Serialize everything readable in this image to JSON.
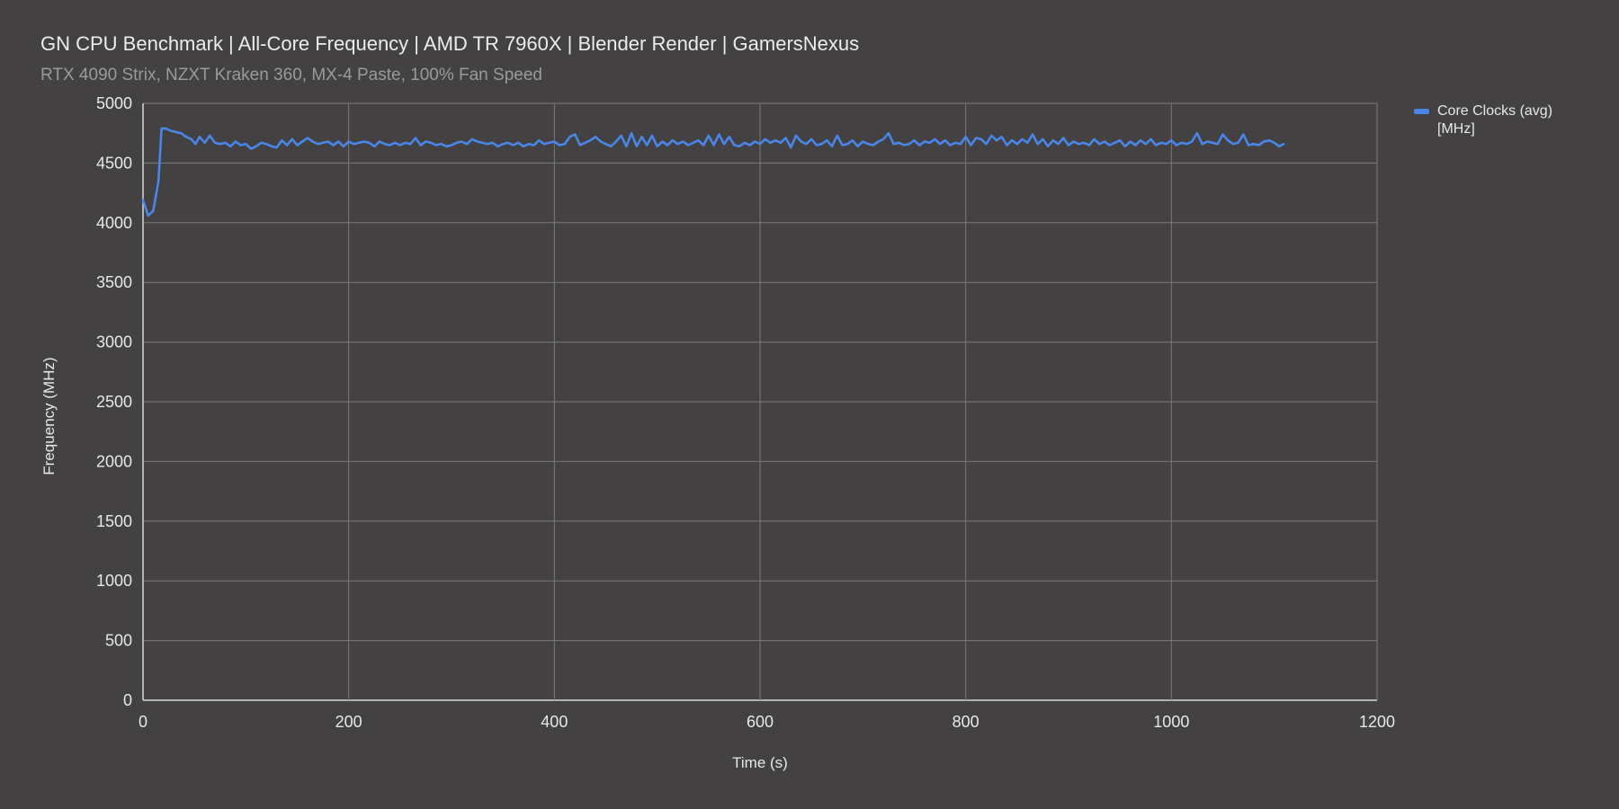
{
  "chart_data": {
    "type": "line",
    "title": "GN CPU Benchmark | All-Core Frequency | AMD TR 7960X | Blender Render | GamersNexus",
    "subtitle": "RTX 4090 Strix, NZXT Kraken 360, MX-4 Paste, 100% Fan Speed",
    "xlabel": "Time (s)",
    "ylabel": "Frequency (MHz)",
    "xlim": [
      0,
      1200
    ],
    "ylim": [
      0,
      5000
    ],
    "x_ticks": [
      "0",
      "200",
      "400",
      "600",
      "800",
      "1000",
      "1200"
    ],
    "y_ticks": [
      "0",
      "500",
      "1000",
      "1500",
      "2000",
      "2500",
      "3000",
      "3500",
      "4000",
      "4500",
      "5000"
    ],
    "grid": true,
    "legend_position": "right",
    "series": [
      {
        "name": "Core Clocks (avg) [MHz]",
        "color": "#4a86e8",
        "points": [
          [
            0,
            4190
          ],
          [
            5,
            4060
          ],
          [
            10,
            4100
          ],
          [
            15,
            4350
          ],
          [
            18,
            4790
          ],
          [
            22,
            4790
          ],
          [
            27,
            4770
          ],
          [
            32,
            4760
          ],
          [
            37,
            4750
          ],
          [
            42,
            4720
          ],
          [
            47,
            4700
          ],
          [
            51,
            4660
          ],
          [
            55,
            4720
          ],
          [
            60,
            4670
          ],
          [
            65,
            4730
          ],
          [
            70,
            4670
          ],
          [
            75,
            4660
          ],
          [
            80,
            4670
          ],
          [
            85,
            4640
          ],
          [
            90,
            4680
          ],
          [
            95,
            4650
          ],
          [
            100,
            4660
          ],
          [
            105,
            4620
          ],
          [
            110,
            4640
          ],
          [
            115,
            4670
          ],
          [
            120,
            4660
          ],
          [
            125,
            4640
          ],
          [
            130,
            4630
          ],
          [
            135,
            4690
          ],
          [
            140,
            4650
          ],
          [
            145,
            4700
          ],
          [
            150,
            4650
          ],
          [
            155,
            4680
          ],
          [
            160,
            4710
          ],
          [
            165,
            4680
          ],
          [
            170,
            4660
          ],
          [
            175,
            4670
          ],
          [
            180,
            4680
          ],
          [
            185,
            4650
          ],
          [
            190,
            4680
          ],
          [
            195,
            4640
          ],
          [
            200,
            4680
          ],
          [
            205,
            4660
          ],
          [
            210,
            4670
          ],
          [
            215,
            4680
          ],
          [
            220,
            4670
          ],
          [
            225,
            4640
          ],
          [
            230,
            4680
          ],
          [
            235,
            4660
          ],
          [
            240,
            4650
          ],
          [
            245,
            4670
          ],
          [
            250,
            4650
          ],
          [
            255,
            4670
          ],
          [
            260,
            4660
          ],
          [
            265,
            4710
          ],
          [
            270,
            4650
          ],
          [
            275,
            4680
          ],
          [
            280,
            4670
          ],
          [
            285,
            4650
          ],
          [
            290,
            4660
          ],
          [
            295,
            4640
          ],
          [
            300,
            4650
          ],
          [
            305,
            4670
          ],
          [
            310,
            4680
          ],
          [
            315,
            4660
          ],
          [
            320,
            4700
          ],
          [
            325,
            4680
          ],
          [
            330,
            4670
          ],
          [
            335,
            4660
          ],
          [
            340,
            4670
          ],
          [
            345,
            4640
          ],
          [
            350,
            4660
          ],
          [
            355,
            4670
          ],
          [
            360,
            4650
          ],
          [
            365,
            4670
          ],
          [
            370,
            4640
          ],
          [
            375,
            4660
          ],
          [
            380,
            4650
          ],
          [
            385,
            4690
          ],
          [
            390,
            4660
          ],
          [
            395,
            4670
          ],
          [
            400,
            4680
          ],
          [
            405,
            4650
          ],
          [
            410,
            4660
          ],
          [
            415,
            4720
          ],
          [
            420,
            4740
          ],
          [
            425,
            4650
          ],
          [
            430,
            4670
          ],
          [
            435,
            4690
          ],
          [
            440,
            4720
          ],
          [
            445,
            4680
          ],
          [
            450,
            4660
          ],
          [
            455,
            4640
          ],
          [
            460,
            4680
          ],
          [
            465,
            4730
          ],
          [
            470,
            4640
          ],
          [
            475,
            4750
          ],
          [
            480,
            4640
          ],
          [
            485,
            4720
          ],
          [
            490,
            4650
          ],
          [
            495,
            4730
          ],
          [
            500,
            4640
          ],
          [
            505,
            4680
          ],
          [
            510,
            4650
          ],
          [
            515,
            4690
          ],
          [
            520,
            4660
          ],
          [
            525,
            4680
          ],
          [
            530,
            4650
          ],
          [
            535,
            4670
          ],
          [
            540,
            4690
          ],
          [
            545,
            4650
          ],
          [
            550,
            4730
          ],
          [
            555,
            4650
          ],
          [
            560,
            4740
          ],
          [
            565,
            4660
          ],
          [
            570,
            4720
          ],
          [
            575,
            4650
          ],
          [
            580,
            4640
          ],
          [
            585,
            4670
          ],
          [
            590,
            4650
          ],
          [
            595,
            4680
          ],
          [
            600,
            4660
          ],
          [
            605,
            4700
          ],
          [
            610,
            4670
          ],
          [
            615,
            4690
          ],
          [
            620,
            4670
          ],
          [
            625,
            4710
          ],
          [
            630,
            4630
          ],
          [
            635,
            4730
          ],
          [
            640,
            4680
          ],
          [
            645,
            4660
          ],
          [
            650,
            4700
          ],
          [
            655,
            4650
          ],
          [
            660,
            4660
          ],
          [
            665,
            4690
          ],
          [
            670,
            4640
          ],
          [
            675,
            4730
          ],
          [
            680,
            4650
          ],
          [
            685,
            4660
          ],
          [
            690,
            4690
          ],
          [
            695,
            4640
          ],
          [
            700,
            4680
          ],
          [
            705,
            4660
          ],
          [
            710,
            4650
          ],
          [
            715,
            4680
          ],
          [
            720,
            4700
          ],
          [
            725,
            4750
          ],
          [
            730,
            4660
          ],
          [
            735,
            4670
          ],
          [
            740,
            4650
          ],
          [
            745,
            4660
          ],
          [
            750,
            4690
          ],
          [
            755,
            4650
          ],
          [
            760,
            4680
          ],
          [
            765,
            4670
          ],
          [
            770,
            4700
          ],
          [
            775,
            4660
          ],
          [
            780,
            4690
          ],
          [
            785,
            4650
          ],
          [
            790,
            4670
          ],
          [
            795,
            4660
          ],
          [
            800,
            4720
          ],
          [
            805,
            4650
          ],
          [
            810,
            4710
          ],
          [
            815,
            4700
          ],
          [
            820,
            4660
          ],
          [
            825,
            4730
          ],
          [
            830,
            4690
          ],
          [
            835,
            4720
          ],
          [
            840,
            4650
          ],
          [
            845,
            4690
          ],
          [
            850,
            4660
          ],
          [
            855,
            4700
          ],
          [
            860,
            4670
          ],
          [
            865,
            4740
          ],
          [
            870,
            4660
          ],
          [
            875,
            4700
          ],
          [
            880,
            4640
          ],
          [
            885,
            4690
          ],
          [
            890,
            4660
          ],
          [
            895,
            4710
          ],
          [
            900,
            4650
          ],
          [
            905,
            4680
          ],
          [
            910,
            4660
          ],
          [
            915,
            4670
          ],
          [
            920,
            4650
          ],
          [
            925,
            4700
          ],
          [
            930,
            4660
          ],
          [
            935,
            4680
          ],
          [
            940,
            4650
          ],
          [
            945,
            4670
          ],
          [
            950,
            4690
          ],
          [
            955,
            4640
          ],
          [
            960,
            4680
          ],
          [
            965,
            4650
          ],
          [
            970,
            4690
          ],
          [
            975,
            4660
          ],
          [
            980,
            4700
          ],
          [
            985,
            4650
          ],
          [
            990,
            4670
          ],
          [
            995,
            4660
          ],
          [
            1000,
            4690
          ],
          [
            1005,
            4650
          ],
          [
            1010,
            4670
          ],
          [
            1015,
            4660
          ],
          [
            1020,
            4680
          ],
          [
            1025,
            4750
          ],
          [
            1030,
            4660
          ],
          [
            1035,
            4680
          ],
          [
            1040,
            4670
          ],
          [
            1045,
            4660
          ],
          [
            1050,
            4740
          ],
          [
            1055,
            4690
          ],
          [
            1060,
            4660
          ],
          [
            1065,
            4670
          ],
          [
            1070,
            4740
          ],
          [
            1075,
            4650
          ],
          [
            1080,
            4660
          ],
          [
            1085,
            4650
          ],
          [
            1090,
            4680
          ],
          [
            1095,
            4690
          ],
          [
            1100,
            4670
          ],
          [
            1105,
            4640
          ],
          [
            1109,
            4660
          ]
        ]
      }
    ]
  }
}
